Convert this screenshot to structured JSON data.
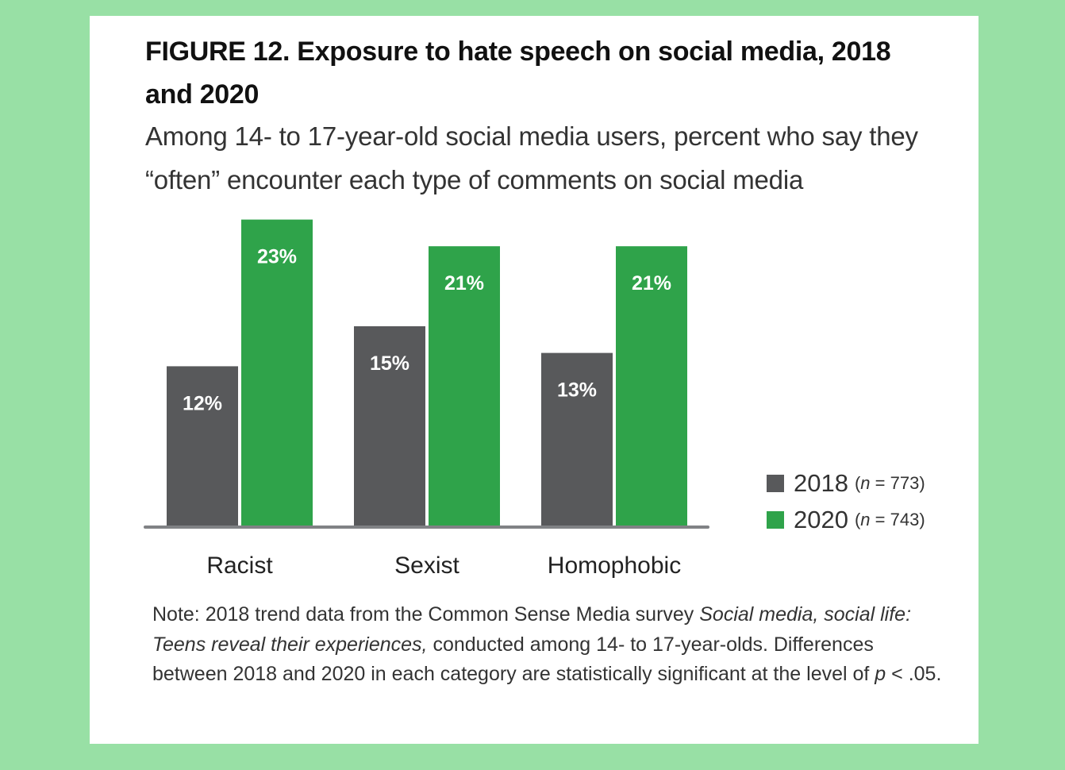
{
  "figure": {
    "title": "FIGURE 12. Exposure to hate speech on social media, 2018 and 2020",
    "subtitle": "Among 14- to 17-year-old social media users, percent who say they “often” encounter each type of comments on social media"
  },
  "legend": [
    {
      "year": "2018",
      "n_prefix": "(",
      "n_var": "n",
      "n_rest": " = 773)",
      "color": "#58595b"
    },
    {
      "year": "2020",
      "n_prefix": "(",
      "n_var": "n",
      "n_rest": " = 743)",
      "color": "#2fa34a"
    }
  ],
  "note": {
    "part1": "Note: 2018 trend data from the Common Sense Media survey ",
    "italic1": "Social media, social life: Teens reveal their experiences,",
    "part2": " conducted among 14- to 17-year-olds. Differences between 2018 and 2020 in each category are statistically significant at the level of ",
    "italic2": "p",
    "part3": " < .05."
  },
  "chart_data": {
    "type": "bar",
    "title": "FIGURE 12. Exposure to hate speech on social media, 2018 and 2020",
    "subtitle": "Among 14- to 17-year-old social media users, percent who say they “often” encounter each type of comments on social media",
    "categories": [
      "Racist",
      "Sexist",
      "Homophobic"
    ],
    "series": [
      {
        "name": "2018 (n = 773)",
        "values": [
          12,
          15,
          13
        ],
        "labels": [
          "12%",
          "15%",
          "13%"
        ],
        "color": "#58595b"
      },
      {
        "name": "2020 (n = 743)",
        "values": [
          23,
          21,
          21
        ],
        "labels": [
          "23%",
          "21%",
          "21%"
        ],
        "color": "#2fa34a"
      }
    ],
    "xlabel": "",
    "ylabel": "",
    "ylim": [
      0,
      23
    ],
    "grid": false,
    "legend_position": "right",
    "axis_color": "#808285"
  }
}
